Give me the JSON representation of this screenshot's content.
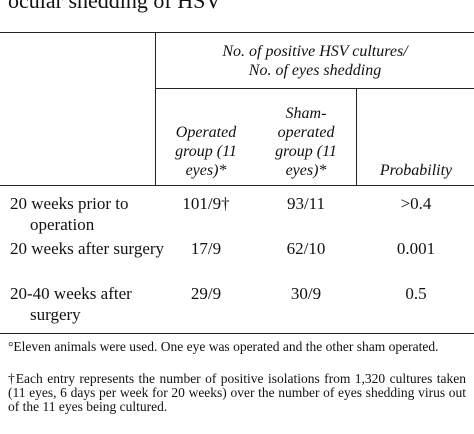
{
  "title": "ocular shedding of HSV",
  "table": {
    "group_header": [
      "No. of positive HSV cultures/",
      "No. of eyes shedding"
    ],
    "columns": [
      "Operated group (11 eyes)*",
      "Sham-operated group (11 eyes)*",
      "Probability"
    ],
    "rows": [
      [
        "20 weeks prior to operation",
        "101/9†",
        "93/11",
        ">0.4"
      ],
      [
        "20 weeks after surgery",
        "17/9",
        "62/10",
        "0.001"
      ],
      [
        "20-40 weeks after surgery",
        "29/9",
        "30/9",
        "0.5"
      ]
    ]
  },
  "footnotes": [
    "°Eleven animals were used. One eye was operated and the other sham operated.",
    "†Each entry represents the number of positive isolations from 1,320 cultures taken (11 eyes, 6 days per week for 20 weeks) over the number of eyes shedding virus out of the 11 eyes being cultured."
  ]
}
